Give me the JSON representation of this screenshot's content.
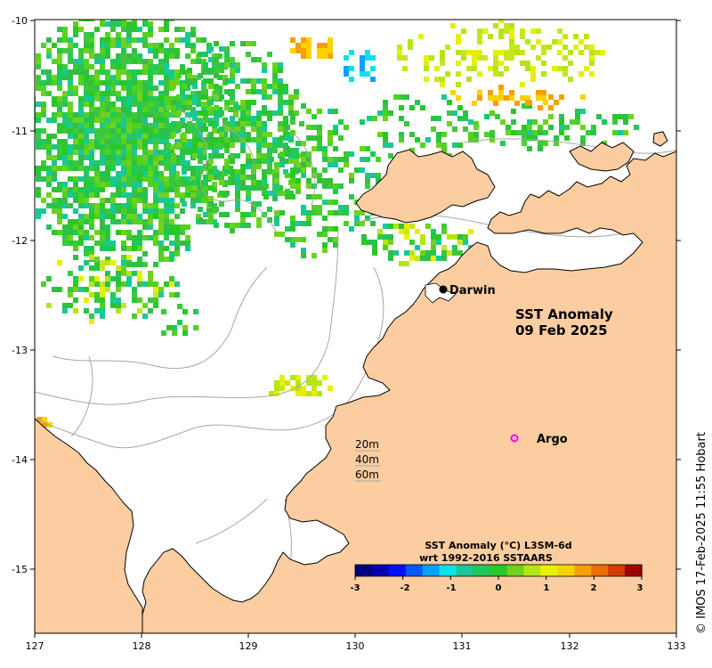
{
  "map": {
    "title_line1": "SST Anomaly",
    "title_line2": "09 Feb 2025",
    "credit": "© IMOS 17-Feb-2025 11:55 Hobart",
    "x_ticks": [
      "127",
      "128",
      "129",
      "130",
      "131",
      "132",
      "133"
    ],
    "y_ticks": [
      "-10",
      "-11",
      "-12",
      "-13",
      "-14",
      "-15"
    ],
    "places": {
      "darwin": "Darwin",
      "argo": "Argo"
    },
    "depth_legend": [
      "20m",
      "40m",
      "60m"
    ],
    "colorbar": {
      "title_line1": "SST Anomaly (°C) L3SM-6d",
      "title_line2": "wrt 1992-2016 SSTAARS",
      "ticks": [
        "-3",
        "-2",
        "-1",
        "0",
        "1",
        "2",
        "3"
      ],
      "colors": [
        "#00007f",
        "#0000b5",
        "#0010ff",
        "#0058ff",
        "#00a2ff",
        "#0ae2e8",
        "#19c896",
        "#1ec85a",
        "#28c828",
        "#6ed21e",
        "#b4e614",
        "#e6f000",
        "#fad200",
        "#f5a000",
        "#eb6e00",
        "#d23c00",
        "#a00000"
      ]
    },
    "colors": {
      "land": "#fbcda0",
      "ocean": "#ffffff",
      "coast": "#000000",
      "bathymetry": "#a6a6a6",
      "argo": "#ff00ff"
    }
  }
}
